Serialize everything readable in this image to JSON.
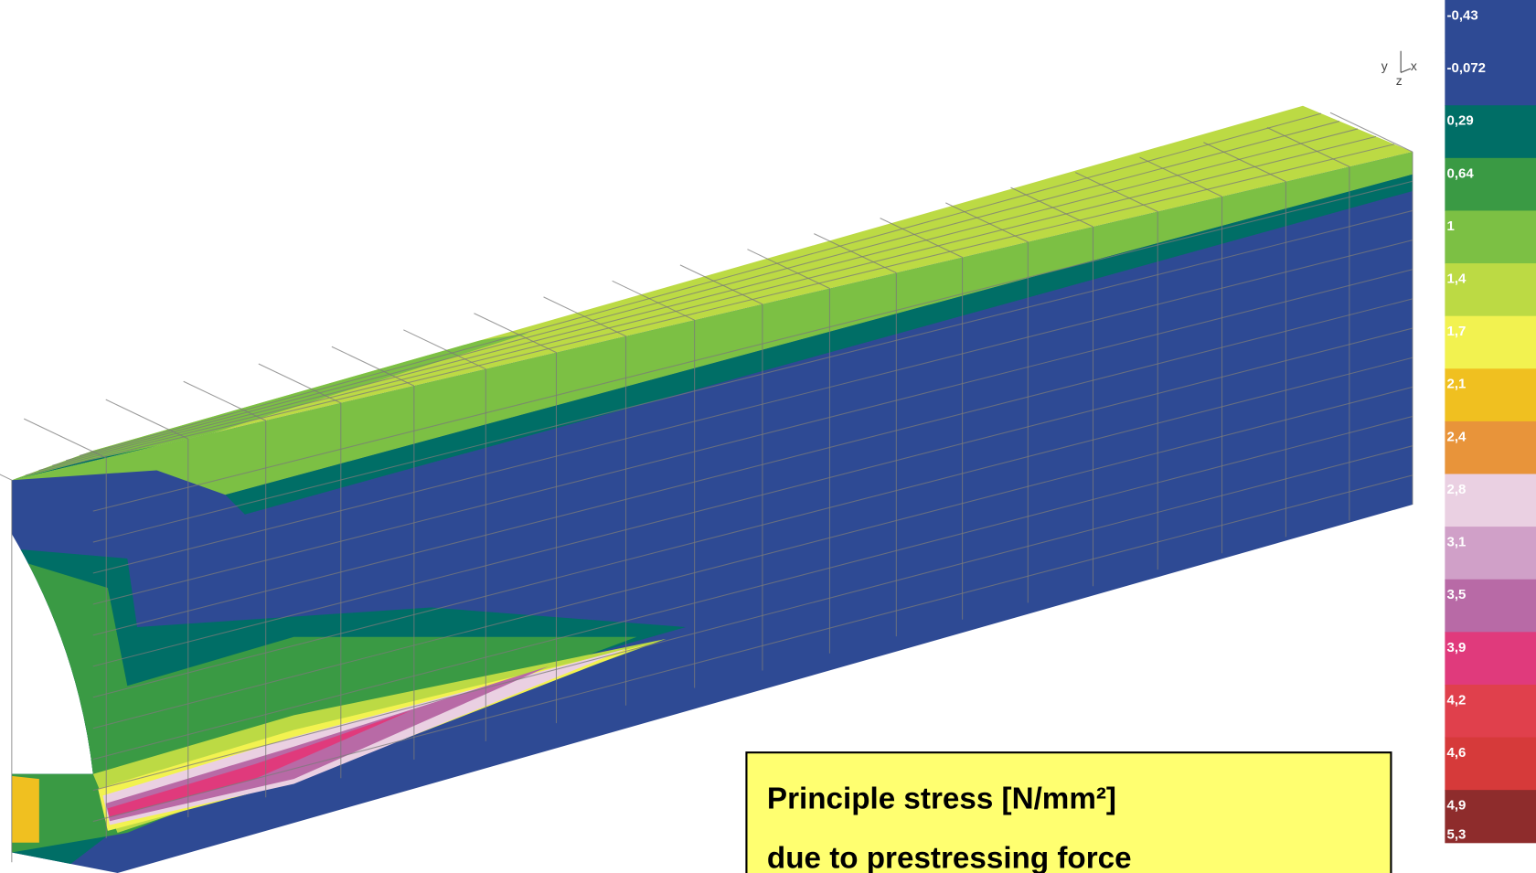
{
  "legend": {
    "labels": [
      "-0,43",
      "-0,072",
      "0,29",
      "0,64",
      "1",
      "1,4",
      "1,7",
      "2,1",
      "2,4",
      "2,8",
      "3,1",
      "3,5",
      "3,9",
      "4,2",
      "4,6",
      "4,9",
      "5,3"
    ],
    "colors": [
      "#2e4a94",
      "#2e4a94",
      "#006e66",
      "#3a9a44",
      "#7cc044",
      "#bcda44",
      "#f2f250",
      "#f0c020",
      "#e8943a",
      "#ead0e2",
      "#d0a0c8",
      "#b86aa6",
      "#e03a7c",
      "#e0404c",
      "#d63a3a",
      "#8e2c2c"
    ]
  },
  "caption": {
    "lines": [
      "Principle stress [N/mm²]",
      "due to prestressing force"
    ]
  },
  "axes_triad": {
    "y": "y",
    "z": "z",
    "x": "x"
  }
}
